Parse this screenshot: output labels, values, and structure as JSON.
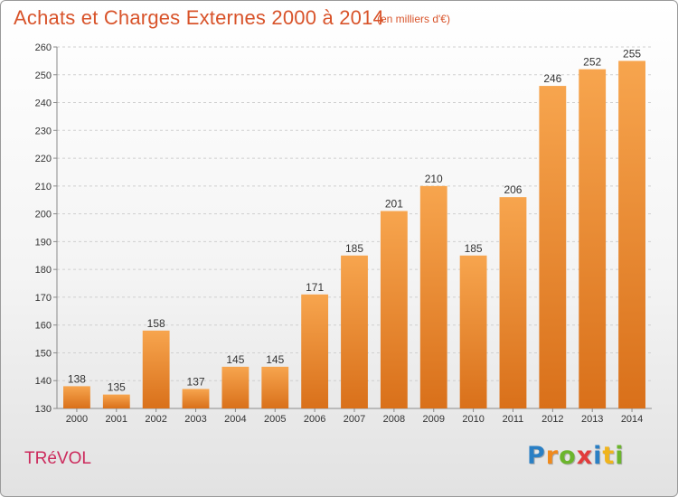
{
  "title": "Achats et Charges Externes 2000 à 2014",
  "subtitle": "(en milliers d'€)",
  "commune": "TRéVOL",
  "logo": {
    "letters": [
      "P",
      "r",
      "o",
      "x",
      "i",
      "t",
      "i"
    ],
    "colors": [
      "#2a7fc4",
      "#f08a1c",
      "#6cb52d",
      "#e23c3c",
      "#2a7fc4",
      "#f0b41c",
      "#6cb52d"
    ]
  },
  "colors": {
    "bar_light": "#f7a54e",
    "bar_dark": "#d9701a",
    "grid": "#cfcfcf",
    "axis": "#8a8a8a",
    "title": "#d8532a",
    "commune": "#cc2a5c"
  },
  "chart_data": {
    "type": "bar",
    "categories": [
      "2000",
      "2001",
      "2002",
      "2003",
      "2004",
      "2005",
      "2006",
      "2007",
      "2008",
      "2009",
      "2010",
      "2011",
      "2012",
      "2013",
      "2014"
    ],
    "values": [
      138,
      135,
      158,
      137,
      145,
      145,
      171,
      185,
      201,
      210,
      185,
      206,
      246,
      252,
      255
    ],
    "ylim": [
      130,
      260
    ],
    "yticks": [
      130,
      140,
      150,
      160,
      170,
      180,
      190,
      200,
      210,
      220,
      230,
      240,
      250,
      260
    ],
    "grid": true,
    "title": "Achats et Charges Externes 2000 à 2014",
    "xlabel": "",
    "ylabel": ""
  }
}
